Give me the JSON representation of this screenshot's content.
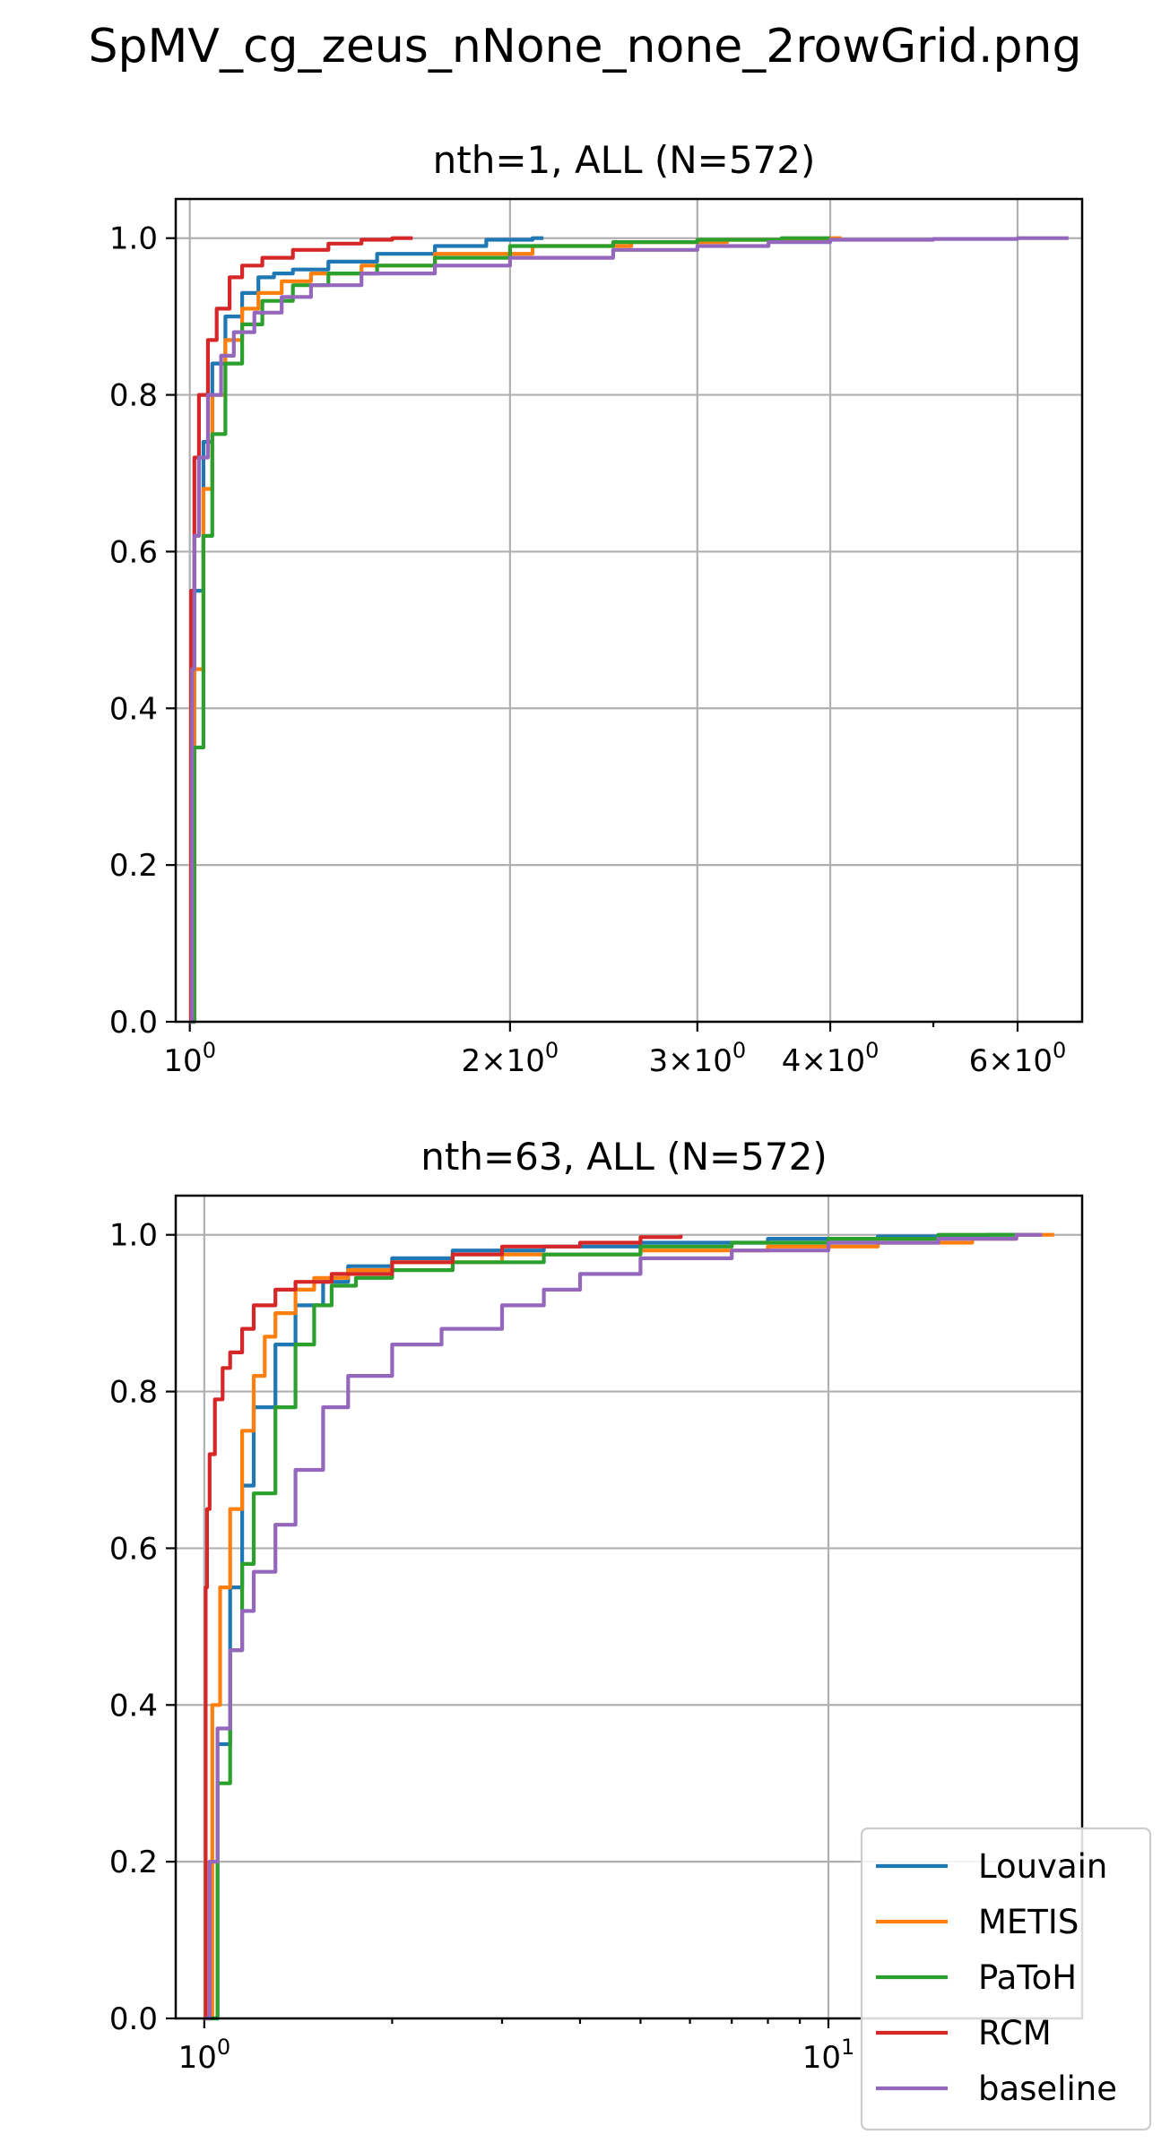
{
  "figure": {
    "title": "SpMV_cg_zeus_nNone_none_2rowGrid.png"
  },
  "legend": {
    "placement": "lower right",
    "entries": [
      {
        "label": "Louvain",
        "color": "#1f77b4"
      },
      {
        "label": "METIS",
        "color": "#ff7f0e"
      },
      {
        "label": "PaToH",
        "color": "#2ca02c"
      },
      {
        "label": "RCM",
        "color": "#d62728"
      },
      {
        "label": "baseline",
        "color": "#9467bd"
      }
    ]
  },
  "chart_data": [
    {
      "type": "line",
      "title": "nth=1, ALL (N=572)",
      "xscale": "log",
      "xlim": [
        0.97,
        6.9
      ],
      "ylim": [
        0.0,
        1.05
      ],
      "grid": true,
      "xticks": [
        {
          "value": 1,
          "base": "10",
          "exp": "0",
          "mult": ""
        },
        {
          "value": 2,
          "base": "10",
          "exp": "0",
          "mult": "2×"
        },
        {
          "value": 3,
          "base": "10",
          "exp": "0",
          "mult": "3×"
        },
        {
          "value": 4,
          "base": "10",
          "exp": "0",
          "mult": "4×"
        },
        {
          "value": 6,
          "base": "10",
          "exp": "0",
          "mult": "6×"
        }
      ],
      "minor_xticks": [
        5
      ],
      "yticks": [
        "0.0",
        "0.2",
        "0.4",
        "0.6",
        "0.8",
        "1.0"
      ],
      "series": [
        {
          "name": "Louvain",
          "color": "#1f77b4",
          "x": [
            1.0,
            1.01,
            1.03,
            1.05,
            1.08,
            1.12,
            1.16,
            1.2,
            1.25,
            1.35,
            1.5,
            1.7,
            1.9,
            2.1,
            2.15
          ],
          "y": [
            0.0,
            0.55,
            0.74,
            0.84,
            0.9,
            0.93,
            0.95,
            0.955,
            0.96,
            0.97,
            0.98,
            0.99,
            0.998,
            1.0,
            1.0
          ]
        },
        {
          "name": "METIS",
          "color": "#ff7f0e",
          "x": [
            1.0,
            1.01,
            1.03,
            1.05,
            1.08,
            1.12,
            1.16,
            1.22,
            1.3,
            1.45,
            1.7,
            2.1,
            2.6,
            3.2,
            4.0,
            4.1
          ],
          "y": [
            0.0,
            0.45,
            0.68,
            0.8,
            0.87,
            0.91,
            0.93,
            0.945,
            0.955,
            0.965,
            0.98,
            0.99,
            0.995,
            0.998,
            1.0,
            1.0
          ]
        },
        {
          "name": "PaToH",
          "color": "#2ca02c",
          "x": [
            1.0,
            1.01,
            1.03,
            1.05,
            1.08,
            1.12,
            1.17,
            1.25,
            1.35,
            1.5,
            1.7,
            2.0,
            2.5,
            3.0,
            3.6,
            4.0
          ],
          "y": [
            0.0,
            0.35,
            0.62,
            0.75,
            0.84,
            0.89,
            0.92,
            0.94,
            0.955,
            0.965,
            0.975,
            0.99,
            0.995,
            0.998,
            1.0,
            1.0
          ]
        },
        {
          "name": "RCM",
          "color": "#d62728",
          "x": [
            1.0,
            1.003,
            1.01,
            1.02,
            1.04,
            1.06,
            1.09,
            1.12,
            1.17,
            1.25,
            1.35,
            1.45,
            1.55,
            1.62
          ],
          "y": [
            0.0,
            0.55,
            0.72,
            0.8,
            0.87,
            0.91,
            0.95,
            0.965,
            0.975,
            0.985,
            0.993,
            0.998,
            1.0,
            1.0
          ]
        },
        {
          "name": "baseline",
          "color": "#9467bd",
          "x": [
            1.0,
            1.005,
            1.01,
            1.02,
            1.04,
            1.07,
            1.1,
            1.15,
            1.22,
            1.3,
            1.45,
            1.7,
            2.0,
            2.5,
            3.0,
            3.5,
            4.0,
            5.0,
            6.0,
            6.7
          ],
          "y": [
            0.0,
            0.45,
            0.62,
            0.72,
            0.8,
            0.85,
            0.88,
            0.905,
            0.925,
            0.94,
            0.955,
            0.965,
            0.975,
            0.985,
            0.99,
            0.995,
            0.998,
            0.999,
            1.0,
            1.0
          ]
        }
      ]
    },
    {
      "type": "line",
      "title": "nth=63, ALL (N=572)",
      "xscale": "log",
      "xlim": [
        0.9,
        25.5
      ],
      "ylim": [
        0.0,
        1.05
      ],
      "grid": true,
      "xticks": [
        {
          "value": 1,
          "base": "10",
          "exp": "0",
          "mult": ""
        },
        {
          "value": 10,
          "base": "10",
          "exp": "1",
          "mult": ""
        }
      ],
      "minor_xticks": [
        2,
        3,
        4,
        5,
        6,
        7,
        8,
        9,
        20
      ],
      "yticks": [
        "0.0",
        "0.2",
        "0.4",
        "0.6",
        "0.8",
        "1.0"
      ],
      "series": [
        {
          "name": "Louvain",
          "color": "#1f77b4",
          "x": [
            1.0,
            1.05,
            1.1,
            1.15,
            1.2,
            1.3,
            1.4,
            1.55,
            1.7,
            2.0,
            2.5,
            3.5,
            5.0,
            8.0,
            12.0,
            18.0,
            22.0
          ],
          "y": [
            0.0,
            0.35,
            0.55,
            0.68,
            0.78,
            0.86,
            0.91,
            0.94,
            0.96,
            0.97,
            0.98,
            0.985,
            0.99,
            0.995,
            0.998,
            1.0,
            1.0
          ]
        },
        {
          "name": "METIS",
          "color": "#ff7f0e",
          "x": [
            1.0,
            1.03,
            1.06,
            1.1,
            1.15,
            1.2,
            1.25,
            1.3,
            1.4,
            1.5,
            1.7,
            2.0,
            3.0,
            5.0,
            8.0,
            12.0,
            17.0,
            20.0,
            23.0
          ],
          "y": [
            0.0,
            0.4,
            0.55,
            0.65,
            0.75,
            0.82,
            0.87,
            0.9,
            0.93,
            0.945,
            0.955,
            0.965,
            0.975,
            0.98,
            0.985,
            0.99,
            0.995,
            1.0,
            1.0
          ]
        },
        {
          "name": "PaToH",
          "color": "#2ca02c",
          "x": [
            1.0,
            1.05,
            1.1,
            1.15,
            1.2,
            1.3,
            1.4,
            1.5,
            1.6,
            1.75,
            2.0,
            2.5,
            3.5,
            5.0,
            7.0,
            10.0,
            15.0,
            20.0
          ],
          "y": [
            0.0,
            0.3,
            0.47,
            0.58,
            0.67,
            0.78,
            0.86,
            0.91,
            0.935,
            0.945,
            0.955,
            0.965,
            0.975,
            0.985,
            0.99,
            0.995,
            1.0,
            1.0
          ]
        },
        {
          "name": "RCM",
          "color": "#d62728",
          "x": [
            1.0,
            1.005,
            1.01,
            1.02,
            1.04,
            1.07,
            1.1,
            1.15,
            1.2,
            1.3,
            1.4,
            1.6,
            2.0,
            2.5,
            3.0,
            4.0,
            5.0,
            5.8
          ],
          "y": [
            0.0,
            0.55,
            0.65,
            0.72,
            0.79,
            0.83,
            0.85,
            0.88,
            0.91,
            0.93,
            0.94,
            0.95,
            0.965,
            0.975,
            0.985,
            0.99,
            0.997,
            1.0
          ]
        },
        {
          "name": "baseline",
          "color": "#9467bd",
          "x": [
            1.0,
            1.02,
            1.05,
            1.1,
            1.15,
            1.2,
            1.3,
            1.4,
            1.55,
            1.7,
            2.0,
            2.4,
            3.0,
            3.5,
            4.0,
            5.0,
            7.0,
            10.0,
            15.0,
            20.0,
            22.0
          ],
          "y": [
            0.0,
            0.2,
            0.37,
            0.47,
            0.52,
            0.57,
            0.63,
            0.7,
            0.78,
            0.82,
            0.86,
            0.88,
            0.91,
            0.93,
            0.95,
            0.97,
            0.98,
            0.99,
            0.995,
            1.0,
            1.0
          ]
        }
      ]
    }
  ]
}
